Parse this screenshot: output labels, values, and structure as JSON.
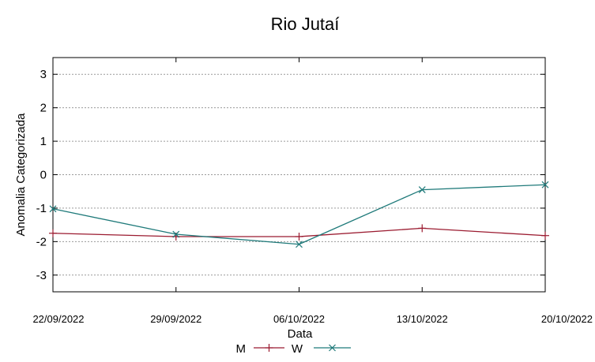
{
  "chart_data": {
    "type": "line",
    "title": "Rio Jutaí",
    "xlabel": "Data",
    "ylabel": "Anomalia Categorizada",
    "categories": [
      "22/09/2022",
      "29/09/2022",
      "06/10/2022",
      "13/10/2022",
      "20/10/2022"
    ],
    "yticks": [
      "3",
      "2",
      "1",
      "0",
      "-1",
      "-2",
      "-3"
    ],
    "ylim": [
      -3.5,
      3.5
    ],
    "grid": true,
    "legend_position": "bottom",
    "series": [
      {
        "name": "M",
        "values": [
          -1.75,
          -1.85,
          -1.85,
          -1.6,
          -1.82
        ],
        "color": "#9b1b30",
        "marker": "plus"
      },
      {
        "name": "W",
        "values": [
          -1.02,
          -1.78,
          -2.08,
          -0.45,
          -0.3
        ],
        "color": "#1f7a7a",
        "marker": "x"
      }
    ]
  }
}
